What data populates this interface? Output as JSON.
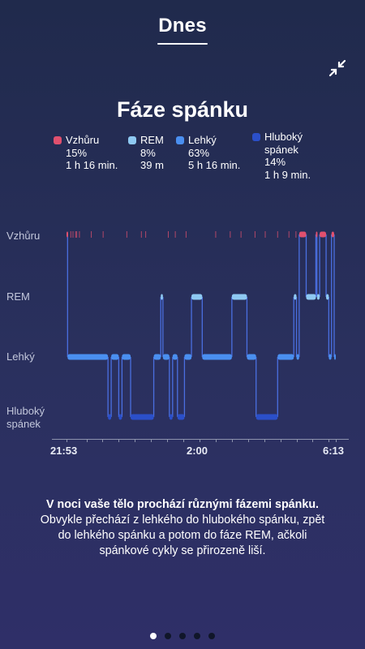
{
  "header": {
    "title": "Dnes"
  },
  "collapse_icon": "collapse-arrows-icon",
  "chart_data": {
    "type": "hypnogram",
    "title": "Fáze spánku",
    "stages": [
      "Vzhůru",
      "REM",
      "Lehký",
      "Hluboký spánek"
    ],
    "x_ticks": [
      "21:53",
      "2:00",
      "6:13"
    ],
    "legend": [
      {
        "name": "Vzhůru",
        "percent": "15%",
        "duration": "1 h 16 min.",
        "color": "#e0506e"
      },
      {
        "name": "REM",
        "percent": "8%",
        "duration": "39 m",
        "color": "#8ec9f2"
      },
      {
        "name": "Lehký",
        "percent": "63%",
        "duration": "5 h 16 min.",
        "color": "#4a8ff0"
      },
      {
        "name_lines": [
          "Hluboký",
          "spánek"
        ],
        "percent": "14%",
        "duration": "1 h 9 min.",
        "color": "#2b4fc9"
      }
    ],
    "segments": [
      {
        "stage": "Vzhůru",
        "start": "21:53",
        "end": "21:55"
      },
      {
        "stage": "Lehký",
        "start": "21:55",
        "end": "23:10"
      },
      {
        "stage": "Hluboký spánek",
        "start": "23:10",
        "end": "23:16"
      },
      {
        "stage": "Lehký",
        "start": "23:16",
        "end": "23:30"
      },
      {
        "stage": "Hluboký spánek",
        "start": "23:30",
        "end": "23:36"
      },
      {
        "stage": "Lehký",
        "start": "23:36",
        "end": "23:52"
      },
      {
        "stage": "Hluboký spánek",
        "start": "23:52",
        "end": "24:35"
      },
      {
        "stage": "Lehký",
        "start": "24:35",
        "end": "24:48"
      },
      {
        "stage": "REM",
        "start": "24:48",
        "end": "24:52"
      },
      {
        "stage": "Lehký",
        "start": "24:52",
        "end": "25:04"
      },
      {
        "stage": "Hluboký spánek",
        "start": "25:04",
        "end": "25:10"
      },
      {
        "stage": "Lehký",
        "start": "25:10",
        "end": "25:19"
      },
      {
        "stage": "Hluboký spánek",
        "start": "25:19",
        "end": "25:32"
      },
      {
        "stage": "Lehký",
        "start": "25:32",
        "end": "25:45"
      },
      {
        "stage": "REM",
        "start": "25:45",
        "end": "26:05"
      },
      {
        "stage": "Lehký",
        "start": "26:05",
        "end": "27:00"
      },
      {
        "stage": "REM",
        "start": "27:00",
        "end": "27:28"
      },
      {
        "stage": "Lehký",
        "start": "27:28",
        "end": "27:45"
      },
      {
        "stage": "Hluboký spánek",
        "start": "27:45",
        "end": "28:25"
      },
      {
        "stage": "Lehký",
        "start": "28:25",
        "end": "28:55"
      },
      {
        "stage": "REM",
        "start": "28:55",
        "end": "29:00"
      },
      {
        "stage": "Lehký",
        "start": "29:00",
        "end": "29:05"
      },
      {
        "stage": "Vzhůru",
        "start": "29:05",
        "end": "29:18"
      },
      {
        "stage": "REM",
        "start": "29:18",
        "end": "29:36"
      },
      {
        "stage": "Vzhůru",
        "start": "29:36",
        "end": "29:38"
      },
      {
        "stage": "REM",
        "start": "29:38",
        "end": "29:43"
      },
      {
        "stage": "Vzhůru",
        "start": "29:43",
        "end": "29:55"
      },
      {
        "stage": "REM",
        "start": "29:55",
        "end": "30:00"
      },
      {
        "stage": "Lehký",
        "start": "30:00",
        "end": "30:05"
      },
      {
        "stage": "Vzhůru",
        "start": "30:05",
        "end": "30:10"
      },
      {
        "stage": "Lehký",
        "start": "30:10",
        "end": "30:13"
      }
    ],
    "brief_awakenings": [
      "22:01",
      "22:05",
      "22:10",
      "22:12",
      "22:17",
      "22:39",
      "23:01",
      "23:45",
      "24:12",
      "24:20",
      "25:02",
      "25:15",
      "25:35",
      "26:30",
      "26:57",
      "27:17",
      "27:43",
      "28:02",
      "28:25",
      "28:46",
      "28:59"
    ]
  },
  "description": {
    "line1": "V noci vaše tělo prochází různými fázemi spánku.",
    "line2": "Obvykle přechází z lehkého do hlubokého spánku, zpět",
    "line3": "do lehkého spánku a potom do fáze REM, ačkoli",
    "line4": "spánkové cykly se přirozeně liší."
  },
  "pager": {
    "total": 5,
    "active": 1
  }
}
